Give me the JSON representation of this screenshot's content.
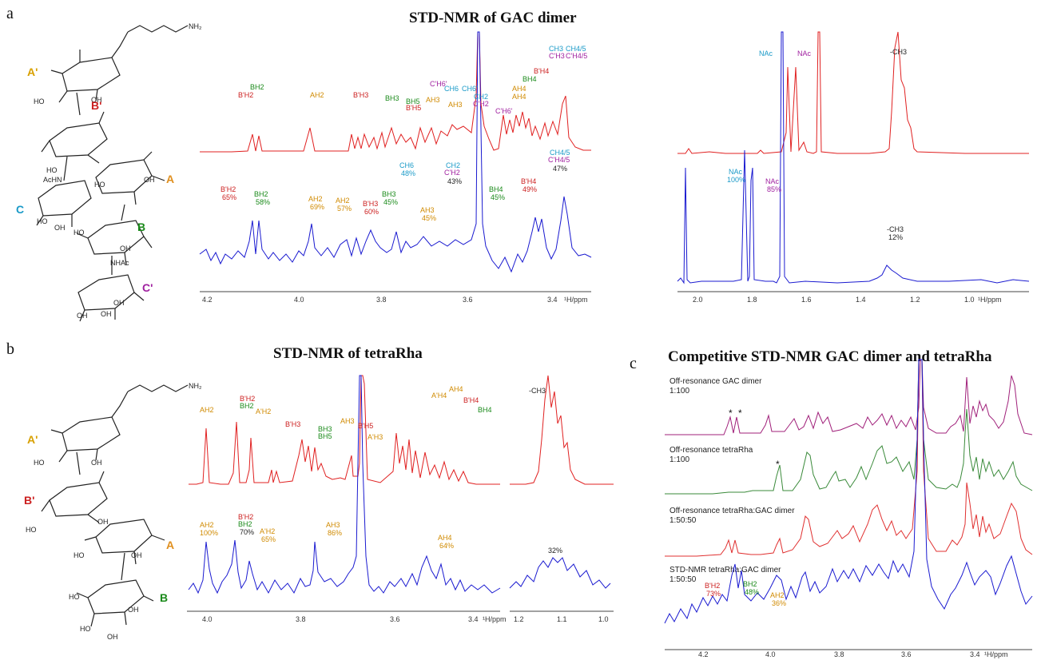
{
  "figure": {
    "panel_a": {
      "letter": "a",
      "title": "STD-NMR of GAC dimer",
      "axis1_unit": "¹H/ppm",
      "axis1_ticks": [
        "4.2",
        "4.0",
        "3.8",
        "3.6",
        "3.4"
      ],
      "axis2_unit": "¹H/ppm",
      "axis2_ticks": [
        "2.0",
        "1.8",
        "1.6",
        "1.4",
        "1.2",
        "1.0"
      ],
      "structure": {
        "rings": [
          "A'",
          "B'",
          "A",
          "C",
          "B",
          "C'"
        ],
        "substituents": [
          "NH₂",
          "HO",
          "OH",
          "HO",
          "AcHN",
          "HO",
          "OH",
          "HO",
          "OH",
          "HO",
          "OH",
          "NHAc",
          "OH",
          "OH",
          "OH"
        ]
      },
      "red_labels": [
        {
          "text": "BH2",
          "color": "#1a8a1a"
        },
        {
          "text": "B'H2",
          "color": "#cc2020"
        },
        {
          "text": "AH2",
          "color": "#d08a00"
        },
        {
          "text": "B'H3",
          "color": "#cc2020"
        },
        {
          "text": "BH3",
          "color": "#1a8a1a"
        },
        {
          "text": "BH5",
          "color": "#1a8a1a"
        },
        {
          "text": "B'H5",
          "color": "#cc2020"
        },
        {
          "text": "C'H6'",
          "color": "#a020a0"
        },
        {
          "text": "CH6",
          "color": "#1a9ac8"
        },
        {
          "text": "CH6'",
          "color": "#1a9ac8"
        },
        {
          "text": "AH3",
          "color": "#d08a00"
        },
        {
          "text": "AH3",
          "color": "#d08a00"
        },
        {
          "text": "CH2",
          "color": "#1a9ac8"
        },
        {
          "text": "C'H2",
          "color": "#a020a0"
        },
        {
          "text": "AH4",
          "color": "#d08a00"
        },
        {
          "text": "AH4",
          "color": "#d08a00"
        },
        {
          "text": "BH4",
          "color": "#1a8a1a"
        },
        {
          "text": "B'H4",
          "color": "#cc2020"
        },
        {
          "text": "C'H6'",
          "color": "#a020a0"
        },
        {
          "text": "CH3",
          "color": "#1a9ac8"
        },
        {
          "text": "C'H3",
          "color": "#a020a0"
        },
        {
          "text": "CH4/5",
          "color": "#1a9ac8"
        },
        {
          "text": "C'H4/5",
          "color": "#a020a0"
        }
      ],
      "blue_labels": [
        {
          "text": "B'H2",
          "color": "#cc2020"
        },
        {
          "text": "65%",
          "color": "#cc2020"
        },
        {
          "text": "BH2",
          "color": "#1a8a1a"
        },
        {
          "text": "58%",
          "color": "#1a8a1a"
        },
        {
          "text": "AH2",
          "color": "#d08a00"
        },
        {
          "text": "69%",
          "color": "#d08a00"
        },
        {
          "text": "AH2",
          "color": "#d08a00"
        },
        {
          "text": "57%",
          "color": "#d08a00"
        },
        {
          "text": "B'H3",
          "color": "#cc2020"
        },
        {
          "text": "60%",
          "color": "#cc2020"
        },
        {
          "text": "BH3",
          "color": "#1a8a1a"
        },
        {
          "text": "45%",
          "color": "#1a8a1a"
        },
        {
          "text": "CH6",
          "color": "#1a9ac8"
        },
        {
          "text": "48%",
          "color": "#1a9ac8"
        },
        {
          "text": "CH2",
          "color": "#1a9ac8"
        },
        {
          "text": "C'H2",
          "color": "#a020a0"
        },
        {
          "text": "43%",
          "color": "#222222"
        },
        {
          "text": "AH3",
          "color": "#d08a00"
        },
        {
          "text": "45%",
          "color": "#d08a00"
        },
        {
          "text": "BH4",
          "color": "#1a8a1a"
        },
        {
          "text": "45%",
          "color": "#1a8a1a"
        },
        {
          "text": "B'H4",
          "color": "#cc2020"
        },
        {
          "text": "49%",
          "color": "#cc2020"
        },
        {
          "text": "CH4/5",
          "color": "#1a9ac8"
        },
        {
          "text": "C'H4/5",
          "color": "#a020a0"
        },
        {
          "text": "47%",
          "color": "#222222"
        }
      ],
      "right_labels": [
        {
          "text": "NAc",
          "color": "#1a9ac8"
        },
        {
          "text": "NAc",
          "color": "#a020a0"
        },
        {
          "text": "-CH3",
          "color": "#222222"
        },
        {
          "text": "NAc",
          "color": "#1a9ac8"
        },
        {
          "text": "100%",
          "color": "#1a9ac8"
        },
        {
          "text": "NAc",
          "color": "#a020a0"
        },
        {
          "text": "85%",
          "color": "#a020a0"
        },
        {
          "text": "-CH3",
          "color": "#222222"
        },
        {
          "text": "12%",
          "color": "#222222"
        }
      ]
    },
    "panel_b": {
      "letter": "b",
      "title": "STD-NMR of tetraRha",
      "axis1_unit": "¹H/ppm",
      "axis1_ticks": [
        "4.0",
        "3.8",
        "3.6",
        "3.4"
      ],
      "axis2_ticks": [
        "1.2",
        "1.1",
        "1.0"
      ],
      "structure": {
        "rings": [
          "A'",
          "B'",
          "A",
          "B"
        ],
        "substituents": [
          "NH₂",
          "HO",
          "OH",
          "HO",
          "OH",
          "HO",
          "OH",
          "HO",
          "OH",
          "HO",
          "OH"
        ]
      },
      "red_labels": [
        {
          "text": "AH2",
          "color": "#d08a00"
        },
        {
          "text": "B'H2",
          "color": "#cc2020"
        },
        {
          "text": "BH2",
          "color": "#1a8a1a"
        },
        {
          "text": "A'H2",
          "color": "#d08a00"
        },
        {
          "text": "B'H3",
          "color": "#cc2020"
        },
        {
          "text": "BH3",
          "color": "#1a8a1a"
        },
        {
          "text": "BH5",
          "color": "#1a8a1a"
        },
        {
          "text": "AH3",
          "color": "#d08a00"
        },
        {
          "text": "B'H5",
          "color": "#cc2020"
        },
        {
          "text": "A'H3",
          "color": "#d08a00"
        },
        {
          "text": "A'H4",
          "color": "#d08a00"
        },
        {
          "text": "AH4",
          "color": "#d08a00"
        },
        {
          "text": "B'H4",
          "color": "#cc2020"
        },
        {
          "text": "BH4",
          "color": "#1a8a1a"
        },
        {
          "text": "-CH3",
          "color": "#222222"
        }
      ],
      "blue_labels": [
        {
          "text": "AH2",
          "color": "#d08a00"
        },
        {
          "text": "100%",
          "color": "#d08a00"
        },
        {
          "text": "B'H2",
          "color": "#cc2020"
        },
        {
          "text": "BH2",
          "color": "#1a8a1a"
        },
        {
          "text": "70%",
          "color": "#222222"
        },
        {
          "text": "A'H2",
          "color": "#d08a00"
        },
        {
          "text": "65%",
          "color": "#d08a00"
        },
        {
          "text": "AH3",
          "color": "#d08a00"
        },
        {
          "text": "86%",
          "color": "#d08a00"
        },
        {
          "text": "AH4",
          "color": "#d08a00"
        },
        {
          "text": "64%",
          "color": "#d08a00"
        },
        {
          "text": "32%",
          "color": "#222222"
        }
      ]
    },
    "panel_c": {
      "letter": "c",
      "title": "Competitive STD-NMR GAC dimer and tetraRha",
      "axis_unit": "¹H/ppm",
      "axis_ticks": [
        "4.2",
        "4.0",
        "3.8",
        "3.6",
        "3.4"
      ],
      "traces": [
        {
          "line1": "Off-resonance GAC dimer",
          "line2": "1:100",
          "color": "#a0207a"
        },
        {
          "line1": "Off-resonance tetraRha",
          "line2": "1:100",
          "color": "#3a8a3a"
        },
        {
          "line1": "Off-resonance tetraRha:GAC dimer",
          "line2": "1:50:50",
          "color": "#e03030"
        },
        {
          "line1": "STD-NMR tetraRha:GAC dimer",
          "line2": "1:50:50",
          "color": "#1a1ad0"
        }
      ],
      "markers": [
        "*",
        "*",
        "*"
      ],
      "labels": [
        {
          "text": "B'H2",
          "color": "#cc2020"
        },
        {
          "text": "73%",
          "color": "#cc2020"
        },
        {
          "text": "BH2",
          "color": "#1a8a1a"
        },
        {
          "text": "48%",
          "color": "#1a8a1a"
        },
        {
          "text": "AH2",
          "color": "#d08a00"
        },
        {
          "text": "36%",
          "color": "#d08a00"
        }
      ]
    }
  }
}
